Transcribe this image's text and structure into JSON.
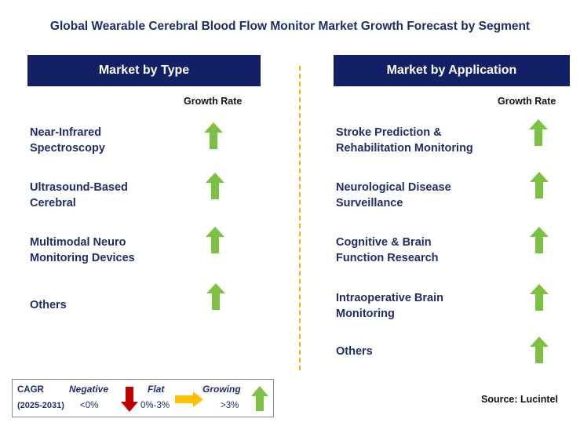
{
  "title": "Global Wearable Cerebral Blood Flow Monitor Market Growth Forecast by Segment",
  "left_panel": {
    "header": "Market by Type",
    "growth_label": "Growth Rate",
    "items": [
      {
        "line1": "Near-Infrared",
        "line2": "Spectroscopy",
        "trend": "growing"
      },
      {
        "line1": "Ultrasound-Based",
        "line2": "Cerebral",
        "trend": "growing"
      },
      {
        "line1": "Multimodal Neuro",
        "line2": "Monitoring Devices",
        "trend": "growing"
      },
      {
        "line1": "Others",
        "line2": "",
        "trend": "growing"
      }
    ]
  },
  "right_panel": {
    "header": "Market by Application",
    "growth_label": "Growth Rate",
    "items": [
      {
        "line1": "Stroke Prediction &",
        "line2": "Rehabilitation Monitoring",
        "trend": "growing"
      },
      {
        "line1": "Neurological Disease",
        "line2": "Surveillance",
        "trend": "growing"
      },
      {
        "line1": "Cognitive & Brain",
        "line2": "Function Research",
        "trend": "growing"
      },
      {
        "line1": "Intraoperative Brain",
        "line2": "Monitoring",
        "trend": "growing"
      },
      {
        "line1": "Others",
        "line2": "",
        "trend": "growing"
      }
    ]
  },
  "legend": {
    "cagr": "CAGR",
    "period": "(2025-2031)",
    "negative_label": "Negative",
    "negative_range": "<0%",
    "flat_label": "Flat",
    "flat_range": "0%-3%",
    "growing_label": "Growing",
    "growing_range": ">3%"
  },
  "source": "Source: Lucintel",
  "colors": {
    "header_bg": "#142066",
    "text": "#1f2d6b",
    "growing": "#7dc142",
    "negative": "#c00000",
    "flat": "#ffc000",
    "divider": "#f0b400"
  }
}
